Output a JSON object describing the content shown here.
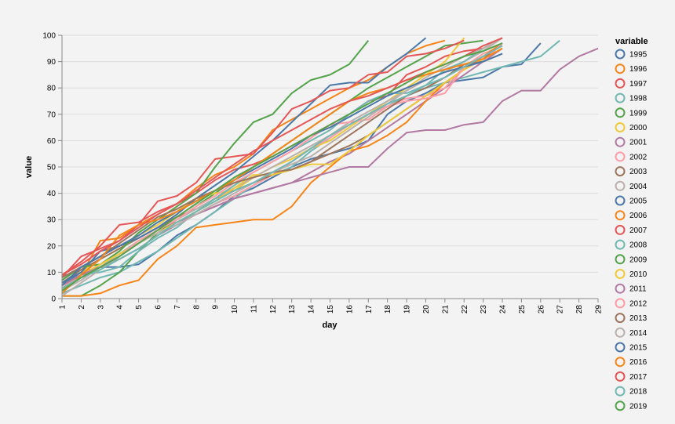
{
  "chart_data": {
    "type": "line",
    "xlabel": "day",
    "ylabel": "value",
    "legend_title": "variable",
    "legend_position": "right",
    "grid": true,
    "xlim": [
      1,
      29
    ],
    "ylim": [
      0,
      100
    ],
    "yticks": [
      0,
      10,
      20,
      30,
      40,
      50,
      60,
      70,
      80,
      90,
      100
    ],
    "xticks": [
      1,
      2,
      3,
      4,
      5,
      6,
      7,
      8,
      9,
      10,
      11,
      12,
      13,
      14,
      15,
      16,
      17,
      18,
      19,
      20,
      21,
      22,
      23,
      24,
      25,
      26,
      27,
      28,
      29
    ],
    "series": [
      {
        "name": "1995",
        "color": "#4c78a8",
        "values": [
          5,
          10,
          12,
          12,
          13,
          18,
          24,
          28,
          33,
          39,
          42,
          46,
          50,
          53,
          55,
          57,
          60,
          70,
          75,
          78,
          82,
          83,
          84,
          88,
          89,
          97
        ]
      },
      {
        "name": "1996",
        "color": "#f58518",
        "values": [
          3,
          9,
          22,
          23,
          28,
          32,
          36,
          42,
          47,
          50,
          55,
          64,
          68,
          72,
          76,
          80,
          83,
          88,
          93,
          96,
          98
        ]
      },
      {
        "name": "1997",
        "color": "#e45756",
        "values": [
          9,
          14,
          20,
          28,
          29,
          33,
          36,
          40,
          45,
          49,
          51,
          54,
          58,
          62,
          66,
          70,
          75,
          77,
          85,
          88,
          92,
          94,
          95,
          99
        ]
      },
      {
        "name": "1998",
        "color": "#72b7b2",
        "values": [
          2,
          5,
          8,
          10,
          14,
          18,
          23,
          28,
          33,
          38,
          43,
          47,
          50,
          56,
          61,
          66,
          70,
          73,
          77,
          80,
          82,
          84,
          86,
          88,
          90,
          92,
          98
        ]
      },
      {
        "name": "1999",
        "color": "#54a24b",
        "values": [
          1,
          1,
          5,
          10,
          18,
          25,
          30,
          35,
          40,
          45,
          50,
          55,
          60,
          65,
          70,
          75,
          80,
          84,
          88,
          92,
          96,
          97,
          98
        ]
      },
      {
        "name": "2000",
        "color": "#eeca3b",
        "values": [
          6,
          10,
          15,
          19,
          24,
          28,
          33,
          38,
          40,
          41,
          46,
          50,
          53,
          57,
          60,
          65,
          70,
          75,
          80,
          85,
          90,
          99
        ]
      },
      {
        "name": "2001",
        "color": "#b279a2",
        "values": [
          7,
          12,
          16,
          20,
          23,
          27,
          29,
          32,
          35,
          38,
          40,
          42,
          44,
          48,
          52,
          55,
          60,
          65,
          70,
          75,
          80,
          85,
          90,
          95
        ]
      },
      {
        "name": "2002",
        "color": "#ff9da6",
        "values": [
          4,
          9,
          13,
          17,
          21,
          25,
          28,
          32,
          36,
          39,
          43,
          47,
          52,
          57,
          61,
          66,
          70,
          73,
          76,
          77,
          80,
          88,
          93,
          96
        ]
      },
      {
        "name": "2003",
        "color": "#9d755d",
        "values": [
          6,
          11,
          15,
          19,
          23,
          27,
          31,
          34,
          38,
          41,
          44,
          47,
          49,
          52,
          55,
          58,
          62,
          67,
          72,
          77,
          82,
          87,
          91,
          97
        ]
      },
      {
        "name": "2004",
        "color": "#bab0ac",
        "values": [
          3,
          7,
          12,
          17,
          22,
          26,
          30,
          34,
          38,
          42,
          46,
          50,
          54,
          58,
          62,
          67,
          71,
          75,
          79,
          83,
          86,
          90,
          94,
          99
        ]
      },
      {
        "name": "2005",
        "color": "#4c78a8",
        "values": [
          6,
          10,
          18,
          20,
          23,
          27,
          32,
          38,
          43,
          48,
          54,
          60,
          67,
          74,
          81,
          82,
          82,
          88,
          93,
          99
        ]
      },
      {
        "name": "2006",
        "color": "#f58518",
        "values": [
          1,
          1,
          2,
          5,
          7,
          15,
          20,
          27,
          28,
          29,
          30,
          30,
          35,
          44,
          50,
          56,
          58,
          62,
          67,
          75,
          82,
          87,
          92,
          97
        ]
      },
      {
        "name": "2007",
        "color": "#e45756",
        "values": [
          8,
          16,
          19,
          22,
          28,
          37,
          39,
          44,
          53,
          54,
          55,
          63,
          72,
          75,
          79,
          80,
          85,
          86,
          92,
          93,
          95,
          98
        ]
      },
      {
        "name": "2008",
        "color": "#72b7b2",
        "values": [
          5,
          9,
          10,
          12,
          18,
          23,
          27,
          33,
          38,
          43,
          48,
          52,
          56,
          60,
          64,
          70,
          75,
          78,
          78,
          81,
          87,
          90,
          95
        ]
      },
      {
        "name": "2009",
        "color": "#54a24b",
        "values": [
          7,
          12,
          13,
          18,
          25,
          30,
          35,
          40,
          50,
          59,
          67,
          70,
          78,
          83,
          85,
          89,
          98
        ]
      },
      {
        "name": "2010",
        "color": "#eeca3b",
        "values": [
          5,
          9,
          13,
          17,
          21,
          25,
          29,
          33,
          37,
          42,
          47,
          47,
          49,
          51,
          51,
          56,
          62,
          67,
          72,
          77,
          82,
          87,
          91,
          95
        ]
      },
      {
        "name": "2011",
        "color": "#b279a2",
        "values": [
          5,
          9,
          12,
          15,
          19,
          24,
          28,
          32,
          35,
          38,
          40,
          42,
          44,
          46,
          48,
          50,
          50,
          57,
          63,
          64,
          64,
          66,
          67,
          75,
          79,
          79,
          87,
          92,
          95
        ]
      },
      {
        "name": "2012",
        "color": "#ff9da6",
        "values": [
          4,
          8,
          12,
          16,
          22,
          26,
          30,
          35,
          39,
          44,
          48,
          52,
          56,
          61,
          66,
          67,
          68,
          73,
          75,
          76,
          78,
          88,
          90,
          97
        ]
      },
      {
        "name": "2013",
        "color": "#9d755d",
        "values": [
          8,
          12,
          16,
          21,
          26,
          31,
          34,
          38,
          41,
          44,
          46,
          48,
          49,
          52,
          57,
          62,
          67,
          72,
          77,
          80,
          84,
          89,
          90,
          93
        ]
      },
      {
        "name": "2014",
        "color": "#bab0ac",
        "values": [
          1,
          6,
          11,
          16,
          21,
          25,
          28,
          32,
          36,
          40,
          44,
          48,
          51,
          54,
          59,
          64,
          69,
          74,
          79,
          84,
          88,
          92,
          95,
          99
        ]
      },
      {
        "name": "2015",
        "color": "#4c78a8",
        "values": [
          5,
          12,
          16,
          20,
          24,
          29,
          33,
          37,
          41,
          45,
          49,
          53,
          57,
          62,
          65,
          69,
          73,
          77,
          80,
          83,
          86,
          88,
          90,
          93
        ]
      },
      {
        "name": "2016",
        "color": "#f58518",
        "values": [
          2,
          9,
          15,
          24,
          28,
          30,
          33,
          37,
          41,
          45,
          50,
          55,
          60,
          65,
          70,
          75,
          78,
          80,
          83,
          85,
          87,
          89,
          91,
          95
        ]
      },
      {
        "name": "2017",
        "color": "#e45756",
        "values": [
          9,
          13,
          18,
          22,
          27,
          32,
          36,
          41,
          46,
          51,
          56,
          60,
          64,
          68,
          72,
          75,
          77,
          80,
          83,
          86,
          89,
          92,
          96,
          99
        ]
      },
      {
        "name": "2018",
        "color": "#72b7b2",
        "values": [
          4,
          8,
          11,
          15,
          19,
          24,
          29,
          33,
          37,
          41,
          44,
          48,
          52,
          57,
          62,
          66,
          70,
          74,
          77,
          81,
          84,
          88,
          92,
          96
        ]
      },
      {
        "name": "2019",
        "color": "#54a24b",
        "values": [
          3,
          8,
          12,
          16,
          21,
          26,
          31,
          36,
          41,
          46,
          50,
          54,
          58,
          62,
          66,
          70,
          74,
          78,
          82,
          86,
          89,
          92,
          94,
          97
        ]
      }
    ]
  }
}
